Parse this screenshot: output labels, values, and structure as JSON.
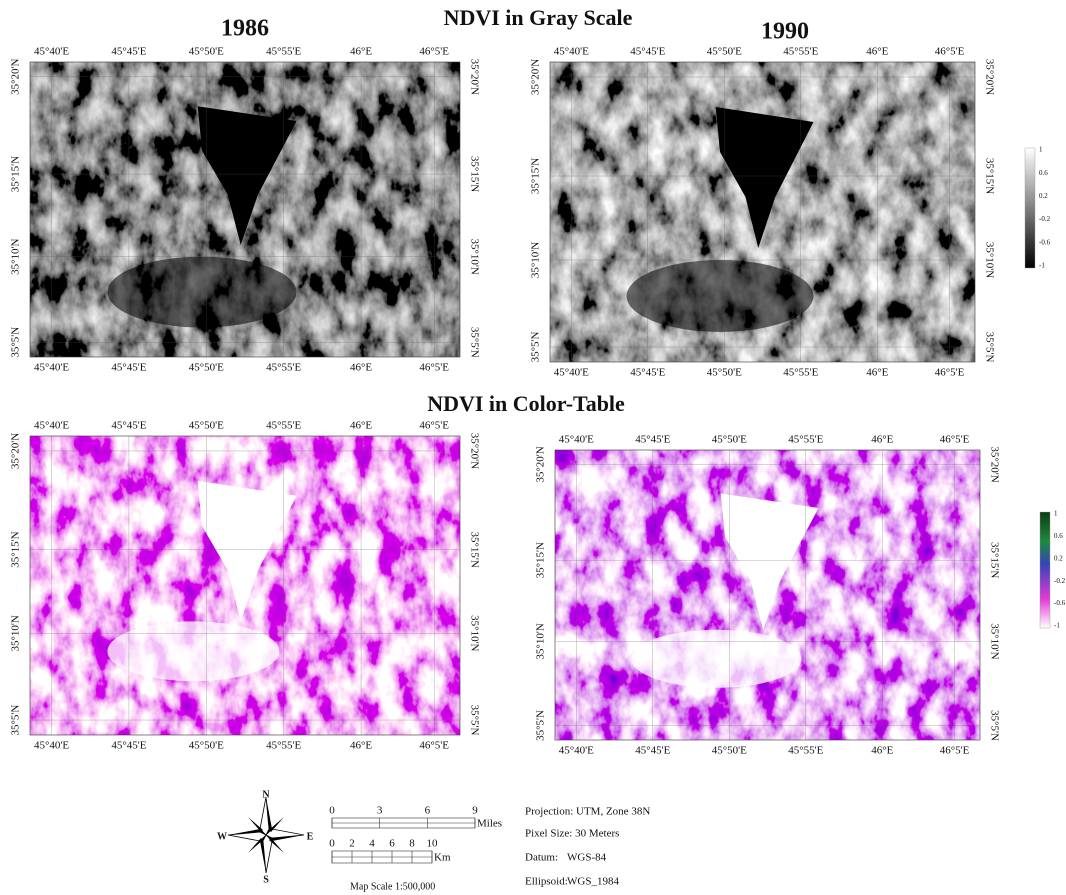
{
  "titles": {
    "gray": "NDVI  in Gray Scale",
    "color": "NDVI in Color-Table"
  },
  "years": [
    "1986",
    "1990"
  ],
  "graticule": {
    "lon": [
      "45°40'E",
      "45°45'E",
      "45°50'E",
      "45°55'E",
      "46°E",
      "46°5'E"
    ],
    "lat": [
      "35°20'N",
      "35°15'N",
      "35°10'N",
      "35°5'N"
    ]
  },
  "legend": {
    "labels": [
      "1",
      "0.6",
      "0.2",
      "-0.2",
      "-0.6",
      "-1"
    ]
  },
  "north_arrow": {
    "n": "N",
    "s": "S",
    "e": "E",
    "w": "W"
  },
  "scale_bar": {
    "miles": {
      "labels": [
        "0",
        "3",
        "6",
        "9"
      ],
      "unit": "Miles"
    },
    "km": {
      "labels": [
        "0",
        "2",
        "4",
        "6",
        "8",
        "10"
      ],
      "unit": "Km"
    }
  },
  "map_scale": "Map Scale 1:500,000",
  "info": {
    "projection": "Projection: UTM, Zone 38N",
    "pixel_size": "Pixel Size: 30 Meters",
    "datum": {
      "label": "Datum:",
      "value": "WGS-84"
    },
    "ellipsoid": {
      "label": "Ellipsoid:",
      "value": "WGS_1984"
    }
  }
}
